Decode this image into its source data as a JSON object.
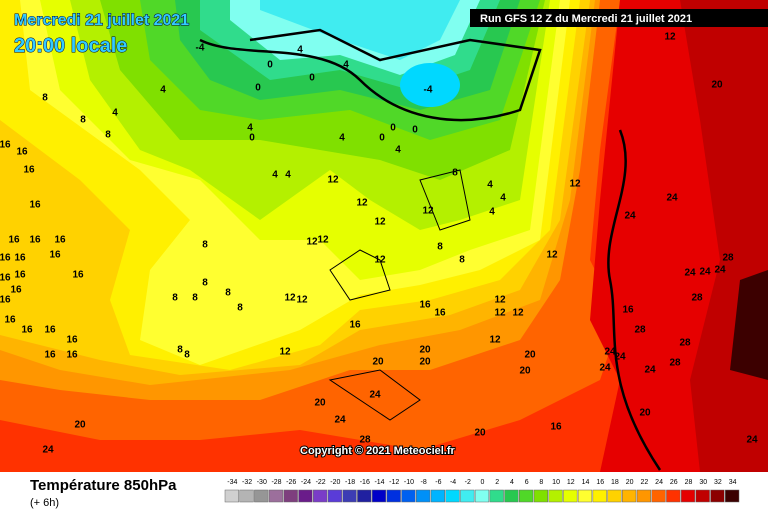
{
  "header": {
    "date": "Mercredi 21 juillet 2021",
    "time": "20:00 locale",
    "run": "Run GFS 12 Z du Mercredi 21 juillet 2021"
  },
  "copyright": "Copyright © 2021 Meteociel.fr",
  "footer": {
    "title": "Température 850hPa",
    "step": "(+ 6h)"
  },
  "legend": {
    "values": [
      -34,
      -32,
      -30,
      -28,
      -26,
      -24,
      -22,
      -20,
      -18,
      -16,
      -14,
      -12,
      -10,
      -8,
      -6,
      -4,
      -2,
      0,
      2,
      4,
      6,
      8,
      10,
      12,
      14,
      16,
      18,
      20,
      22,
      24,
      26,
      28,
      30,
      32,
      34
    ],
    "colors": [
      "#d0d0d0",
      "#b4b4b4",
      "#969696",
      "#9c6f9c",
      "#7e3f7e",
      "#6a1c8a",
      "#7a3cc8",
      "#5a3cd8",
      "#3c3cb4",
      "#2020a0",
      "#0000c8",
      "#0030e0",
      "#0060f0",
      "#0090f8",
      "#00b4ff",
      "#00d8ff",
      "#40ecf0",
      "#80fff0",
      "#30dc8c",
      "#28c850",
      "#50d828",
      "#80e000",
      "#b4f000",
      "#e6ff00",
      "#ffff30",
      "#fff000",
      "#ffd200",
      "#ffb400",
      "#ff9600",
      "#ff6400",
      "#ff3200",
      "#e60000",
      "#c00000",
      "#8c0000",
      "#3c0000"
    ]
  },
  "contour_labels": [
    -4,
    0,
    0,
    4,
    0,
    4,
    -4,
    4,
    8,
    4,
    8,
    8,
    4,
    0,
    16,
    16,
    16,
    16,
    16,
    16,
    16,
    16,
    16,
    16,
    16,
    16,
    16,
    16,
    16,
    16,
    16,
    16,
    16,
    16,
    16,
    12,
    12,
    12,
    12,
    12,
    12,
    12,
    12,
    12,
    12,
    12,
    12,
    12,
    12,
    12,
    12,
    12,
    8,
    8,
    8,
    8,
    8,
    8,
    8,
    8,
    8,
    8,
    8,
    20,
    20,
    20,
    20,
    20,
    20,
    20,
    20,
    20,
    24,
    24,
    24,
    24,
    24,
    24,
    24,
    24,
    24,
    24,
    24,
    24,
    28,
    28,
    28,
    28,
    28,
    28,
    16,
    16,
    16,
    16,
    16,
    4,
    4,
    4,
    4,
    4,
    4,
    4,
    0,
    0,
    0,
    20,
    24
  ]
}
